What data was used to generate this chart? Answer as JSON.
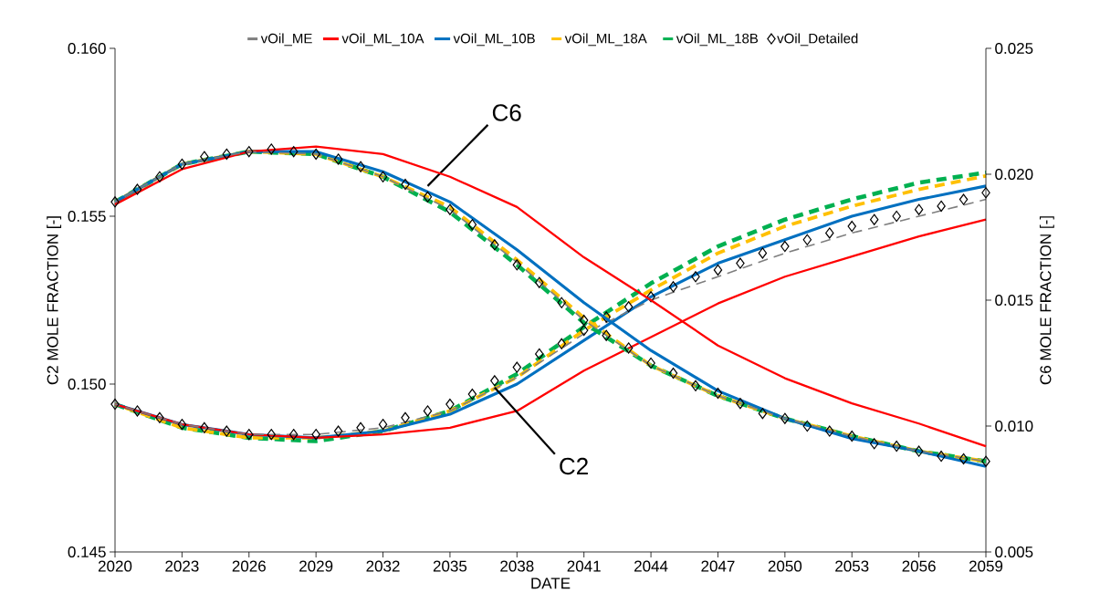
{
  "chart_data": {
    "type": "line",
    "xlabel": "DATE",
    "ylabel": "C2 MOLE FRACTION [-]",
    "y2label": "C6 MOLE FRACTION [-]",
    "legend": "top",
    "xlim": [
      2020,
      2059
    ],
    "xticks": [
      2020,
      2023,
      2026,
      2029,
      2032,
      2035,
      2038,
      2041,
      2044,
      2047,
      2050,
      2053,
      2056,
      2059
    ],
    "ylim": [
      0.145,
      0.16
    ],
    "yticks": [
      {
        "value": 0.145,
        "label": "0.145"
      },
      {
        "value": 0.15,
        "label": "0.150"
      },
      {
        "value": 0.155,
        "label": "0.155"
      },
      {
        "value": 0.16,
        "label": "0.160"
      }
    ],
    "y2lim": [
      0.005,
      0.025
    ],
    "y2ticks": [
      {
        "value": 0.005,
        "label": "0.005"
      },
      {
        "value": 0.01,
        "label": "0.010"
      },
      {
        "value": 0.015,
        "label": "0.015"
      },
      {
        "value": 0.02,
        "label": "0.020"
      },
      {
        "value": 0.025,
        "label": "0.025"
      }
    ],
    "annotations": [
      {
        "text": "C6",
        "x": 2034,
        "y": 0.1559
      },
      {
        "text": "C2",
        "x": 2037,
        "y": 0.1499
      }
    ],
    "series": [
      {
        "name": "vOil_ME",
        "color": "#7f7f7f",
        "line_style": "dashed",
        "marker": "none",
        "x": [
          2020,
          2023,
          2026,
          2029,
          2032,
          2035,
          2038,
          2041,
          2044,
          2047,
          2050,
          2053,
          2056,
          2059
        ],
        "values": [
          0.1494,
          0.1488,
          0.1485,
          0.1485,
          0.1487,
          0.1492,
          0.1502,
          0.1515,
          0.1525,
          0.1532,
          0.1539,
          0.1545,
          0.155,
          0.1555
        ]
      },
      {
        "name": "vOil_ML_10A",
        "color": "#ff0000",
        "line_style": "solid",
        "marker": "none",
        "x": [
          2020,
          2023,
          2026,
          2029,
          2032,
          2035,
          2038,
          2041,
          2044,
          2047,
          2050,
          2053,
          2056,
          2059
        ],
        "values": [
          0.1494,
          0.1488,
          0.1485,
          0.1484,
          0.1485,
          0.1487,
          0.1492,
          0.1504,
          0.1514,
          0.1524,
          0.1532,
          0.1538,
          0.1544,
          0.1549
        ]
      },
      {
        "name": "vOil_ML_10B",
        "color": "#0070c0",
        "line_style": "solid",
        "marker": "none",
        "x": [
          2020,
          2023,
          2026,
          2029,
          2032,
          2035,
          2038,
          2041,
          2044,
          2047,
          2050,
          2053,
          2056,
          2059
        ],
        "values": [
          0.1494,
          0.1488,
          0.1485,
          0.1484,
          0.1486,
          0.1491,
          0.15,
          0.1513,
          0.1526,
          0.1536,
          0.1543,
          0.155,
          0.1555,
          0.1559
        ]
      },
      {
        "name": "vOil_ML_18A",
        "color": "#ffc000",
        "line_style": "dashed",
        "marker": "none",
        "x": [
          2020,
          2023,
          2026,
          2029,
          2032,
          2035,
          2038,
          2041,
          2044,
          2047,
          2050,
          2053,
          2056,
          2059
        ],
        "values": [
          0.1494,
          0.1487,
          0.1484,
          0.1484,
          0.1486,
          0.1492,
          0.1502,
          0.1516,
          0.1528,
          0.1539,
          0.1547,
          0.1553,
          0.1558,
          0.1562
        ]
      },
      {
        "name": "vOil_ML_18B",
        "color": "#00b050",
        "line_style": "dashed",
        "marker": "none",
        "x": [
          2020,
          2023,
          2026,
          2029,
          2032,
          2035,
          2038,
          2041,
          2044,
          2047,
          2050,
          2053,
          2056,
          2059
        ],
        "values": [
          0.1494,
          0.1487,
          0.1484,
          0.1483,
          0.1486,
          0.1492,
          0.1503,
          0.1517,
          0.153,
          0.1541,
          0.1549,
          0.1555,
          0.156,
          0.1563
        ]
      },
      {
        "name": "vOil_Detailed",
        "color": "#000000",
        "type": "scatter",
        "marker": "diamond",
        "x": [
          2020,
          2021,
          2022,
          2023,
          2024,
          2025,
          2026,
          2027,
          2028,
          2029,
          2030,
          2031,
          2032,
          2033,
          2034,
          2035,
          2036,
          2037,
          2038,
          2039,
          2040,
          2041,
          2042,
          2043,
          2044,
          2045,
          2046,
          2047,
          2048,
          2049,
          2050,
          2051,
          2052,
          2053,
          2054,
          2055,
          2056,
          2057,
          2058,
          2059
        ],
        "values": [
          0.1494,
          0.1492,
          0.149,
          0.1488,
          0.1487,
          0.1486,
          0.1485,
          0.1485,
          0.1485,
          0.1485,
          0.1486,
          0.1487,
          0.1488,
          0.149,
          0.1492,
          0.1494,
          0.1497,
          0.1501,
          0.1505,
          0.1509,
          0.1512,
          0.1516,
          0.152,
          0.1523,
          0.1526,
          0.1529,
          0.1532,
          0.1534,
          0.1536,
          0.1539,
          0.1541,
          0.1543,
          0.1545,
          0.1547,
          0.1549,
          0.155,
          0.1552,
          0.1553,
          0.1555,
          0.1557
        ]
      },
      {
        "color": "#7f7f7f",
        "line_style": "dashed",
        "marker": "none",
        "axis": "y2",
        "x": [
          2020,
          2023,
          2026,
          2029,
          2032,
          2035,
          2038,
          2041,
          2044,
          2047,
          2050,
          2053,
          2056,
          2059
        ],
        "values": [
          0.0189,
          0.0204,
          0.0209,
          0.0208,
          0.0199,
          0.0186,
          0.0165,
          0.0142,
          0.0124,
          0.0112,
          0.0103,
          0.0096,
          0.009,
          0.0086
        ]
      },
      {
        "color": "#ff0000",
        "line_style": "solid",
        "marker": "none",
        "axis": "y2",
        "x": [
          2020,
          2023,
          2026,
          2029,
          2032,
          2035,
          2038,
          2041,
          2044,
          2047,
          2050,
          2053,
          2056,
          2059
        ],
        "values": [
          0.0188,
          0.0202,
          0.0209,
          0.0211,
          0.0208,
          0.0199,
          0.0187,
          0.0167,
          0.015,
          0.0132,
          0.0119,
          0.0109,
          0.0101,
          0.0092
        ]
      },
      {
        "color": "#0070c0",
        "line_style": "solid",
        "marker": "none",
        "axis": "y2",
        "x": [
          2020,
          2023,
          2026,
          2029,
          2032,
          2035,
          2038,
          2041,
          2044,
          2047,
          2050,
          2053,
          2056,
          2059
        ],
        "values": [
          0.0189,
          0.0204,
          0.0209,
          0.0209,
          0.0201,
          0.0189,
          0.017,
          0.0149,
          0.013,
          0.0114,
          0.0103,
          0.0095,
          0.009,
          0.0084
        ]
      },
      {
        "color": "#ffc000",
        "line_style": "dashed",
        "marker": "none",
        "axis": "y2",
        "x": [
          2020,
          2023,
          2026,
          2029,
          2032,
          2035,
          2038,
          2041,
          2044,
          2047,
          2050,
          2053,
          2056,
          2059
        ],
        "values": [
          0.0189,
          0.0204,
          0.0209,
          0.0208,
          0.0199,
          0.0187,
          0.0166,
          0.0143,
          0.0124,
          0.0112,
          0.0103,
          0.0096,
          0.009,
          0.0086
        ]
      },
      {
        "color": "#00b050",
        "line_style": "dashed",
        "marker": "none",
        "axis": "y2",
        "x": [
          2020,
          2023,
          2026,
          2029,
          2032,
          2035,
          2038,
          2041,
          2044,
          2047,
          2050,
          2053,
          2056,
          2059
        ],
        "values": [
          0.0189,
          0.0204,
          0.0209,
          0.0208,
          0.0199,
          0.0185,
          0.0164,
          0.0141,
          0.0124,
          0.0112,
          0.0103,
          0.0096,
          0.009,
          0.0086
        ]
      },
      {
        "color": "#000000",
        "type": "scatter",
        "marker": "diamond",
        "axis": "y2",
        "x": [
          2020,
          2021,
          2022,
          2023,
          2024,
          2025,
          2026,
          2027,
          2028,
          2029,
          2030,
          2031,
          2032,
          2033,
          2034,
          2035,
          2036,
          2037,
          2038,
          2039,
          2040,
          2041,
          2042,
          2043,
          2044,
          2045,
          2046,
          2047,
          2048,
          2049,
          2050,
          2051,
          2052,
          2053,
          2054,
          2055,
          2056,
          2057,
          2058,
          2059
        ],
        "values": [
          0.0189,
          0.0194,
          0.0199,
          0.0204,
          0.0207,
          0.0208,
          0.0209,
          0.021,
          0.0209,
          0.0208,
          0.0206,
          0.0203,
          0.0199,
          0.0196,
          0.0191,
          0.0186,
          0.018,
          0.0172,
          0.0164,
          0.0157,
          0.0149,
          0.0142,
          0.0136,
          0.0131,
          0.0125,
          0.0121,
          0.0116,
          0.0113,
          0.0109,
          0.0105,
          0.0103,
          0.01,
          0.0098,
          0.0096,
          0.0093,
          0.0092,
          0.009,
          0.0088,
          0.0087,
          0.0086
        ]
      }
    ]
  }
}
